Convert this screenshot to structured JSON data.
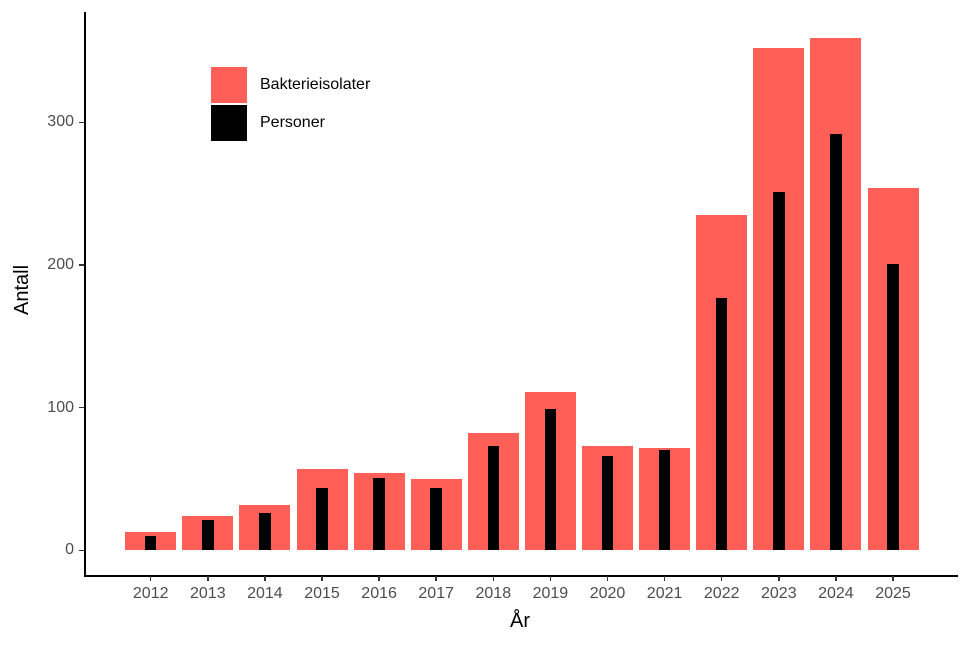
{
  "chart_data": {
    "type": "bar",
    "title": "",
    "xlabel": "År",
    "ylabel": "Antall",
    "categories": [
      "2012",
      "2013",
      "2014",
      "2015",
      "2016",
      "2017",
      "2018",
      "2019",
      "2020",
      "2021",
      "2022",
      "2023",
      "2024",
      "2025"
    ],
    "series": [
      {
        "name": "Bakterieisolater",
        "color": "#FF5F57",
        "values": [
          13,
          24,
          32,
          57,
          54,
          50,
          82,
          111,
          73,
          72,
          235,
          352,
          359,
          254
        ]
      },
      {
        "name": "Personer",
        "color": "#000000",
        "values": [
          10,
          21,
          26,
          44,
          51,
          44,
          73,
          99,
          66,
          70,
          177,
          251,
          292,
          201
        ]
      }
    ],
    "yticks": [
      0,
      100,
      200,
      300
    ],
    "ylim": [
      -18,
      370
    ],
    "grid": false,
    "legend_position": "inside top-left"
  },
  "legend": {
    "items": [
      {
        "label": "Bakterieisolater",
        "color": "#FF5F57"
      },
      {
        "label": "Personer",
        "color": "#000000"
      }
    ]
  },
  "axes": {
    "xlabel": "År",
    "ylabel": "Antall",
    "ytick_labels": [
      "0",
      "100",
      "200",
      "300"
    ]
  }
}
